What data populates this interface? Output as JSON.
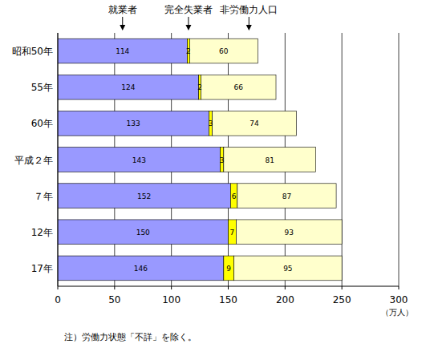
{
  "chart_data": {
    "type": "bar",
    "orientation": "horizontal",
    "stacked": true,
    "data_labels": true,
    "grid": true,
    "legend": "top",
    "categories": [
      "昭和50年",
      "55年",
      "60年",
      "平成２年",
      "７年",
      "12年",
      "17年"
    ],
    "series": [
      {
        "name": "就業者",
        "color": "#9999ff",
        "values": [
          114,
          124,
          133,
          143,
          152,
          150,
          146
        ]
      },
      {
        "name": "完全失業者",
        "color": "#ffff00",
        "values": [
          2,
          2,
          3,
          3,
          6,
          7,
          9
        ]
      },
      {
        "name": "非労働力人口",
        "color": "#ffffcc",
        "values": [
          60,
          66,
          74,
          81,
          87,
          93,
          95
        ]
      }
    ],
    "xlim": [
      0,
      300
    ],
    "xticks": [
      0,
      50,
      100,
      150,
      200,
      250,
      300
    ],
    "x_label": "（万人）",
    "annotation": "注）労働力状態「不詳」を除く。"
  }
}
